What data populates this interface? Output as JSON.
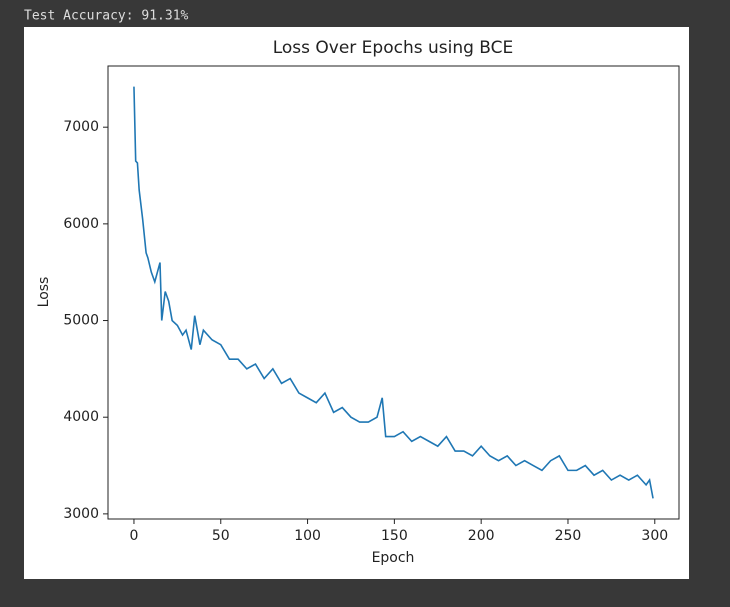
{
  "console": {
    "lines": [
      "Test Accuracy: 91.31%"
    ]
  },
  "chart_data": {
    "type": "line",
    "title": "Loss Over Epochs using BCE",
    "x_label": "Epoch",
    "y_label": "Loss",
    "x": [
      0,
      1,
      2,
      3,
      5,
      7,
      8,
      10,
      12,
      15,
      16,
      18,
      20,
      22,
      25,
      28,
      30,
      33,
      35,
      38,
      40,
      45,
      50,
      55,
      60,
      65,
      70,
      75,
      80,
      85,
      90,
      95,
      100,
      105,
      110,
      115,
      120,
      125,
      130,
      135,
      140,
      143,
      145,
      150,
      155,
      160,
      165,
      170,
      175,
      180,
      185,
      190,
      195,
      200,
      205,
      210,
      215,
      220,
      225,
      230,
      235,
      240,
      245,
      250,
      255,
      260,
      265,
      270,
      275,
      280,
      285,
      290,
      295,
      297,
      299
    ],
    "series": [
      {
        "name": "Loss",
        "color": "#1f77b4",
        "values": [
          7420,
          6650,
          6630,
          6350,
          6050,
          5700,
          5650,
          5500,
          5400,
          5600,
          5000,
          5300,
          5200,
          5000,
          4950,
          4850,
          4900,
          4700,
          5050,
          4750,
          4900,
          4800,
          4750,
          4600,
          4600,
          4500,
          4550,
          4400,
          4500,
          4350,
          4400,
          4250,
          4200,
          4150,
          4250,
          4050,
          4100,
          4000,
          3950,
          3950,
          4000,
          4200,
          3800,
          3800,
          3850,
          3750,
          3800,
          3750,
          3700,
          3800,
          3650,
          3650,
          3600,
          3700,
          3600,
          3550,
          3600,
          3500,
          3550,
          3500,
          3450,
          3550,
          3600,
          3450,
          3450,
          3500,
          3400,
          3450,
          3350,
          3400,
          3350,
          3400,
          3300,
          3350,
          3160
        ]
      }
    ],
    "xlim": [
      -14.95,
      313.95
    ],
    "ylim": [
      2947,
      7633
    ],
    "xticks": [
      0,
      50,
      100,
      150,
      200,
      250,
      300
    ],
    "yticks": [
      3000,
      4000,
      5000,
      6000,
      7000
    ]
  }
}
